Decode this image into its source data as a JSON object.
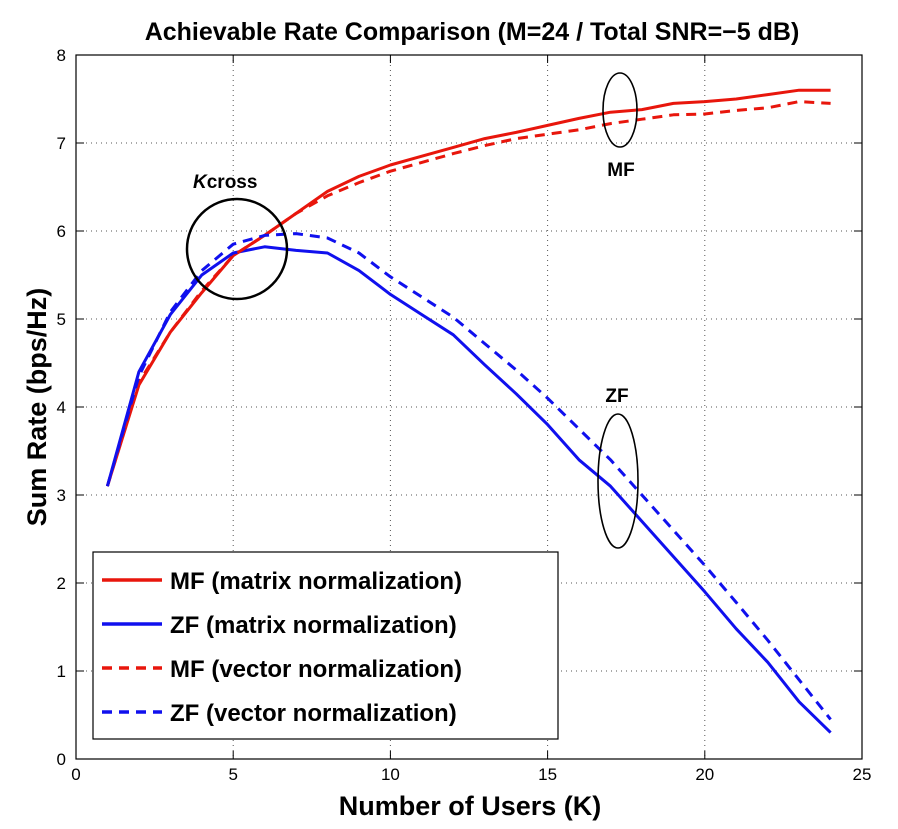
{
  "chart_data": {
    "type": "line",
    "title": "Achievable Rate Comparison (M=24 / Total SNR=−5 dB)",
    "xlabel": "Number of Users (K)",
    "ylabel": "Sum Rate (bps/Hz)",
    "xlim": [
      0,
      25
    ],
    "ylim": [
      0,
      8
    ],
    "xticks": [
      0,
      5,
      10,
      15,
      20,
      25
    ],
    "yticks": [
      0,
      1,
      2,
      3,
      4,
      5,
      6,
      7,
      8
    ],
    "grid": "dotted",
    "legend_position": "bottom-left",
    "series": [
      {
        "name": "MF (matrix normalization)",
        "color": "#e8160c",
        "dash": "solid",
        "x": [
          1,
          2,
          3,
          4,
          5,
          6,
          7,
          8,
          9,
          10,
          11,
          12,
          13,
          14,
          15,
          16,
          17,
          18,
          19,
          20,
          21,
          22,
          23,
          24
        ],
        "y": [
          3.1,
          4.25,
          4.85,
          5.3,
          5.72,
          5.95,
          6.2,
          6.45,
          6.62,
          6.75,
          6.85,
          6.95,
          7.05,
          7.12,
          7.2,
          7.28,
          7.35,
          7.38,
          7.45,
          7.47,
          7.5,
          7.55,
          7.6,
          7.6
        ]
      },
      {
        "name": "ZF (matrix normalization)",
        "color": "#1010ee",
        "dash": "solid",
        "x": [
          1,
          2,
          3,
          4,
          5,
          6,
          7,
          8,
          9,
          10,
          11,
          12,
          13,
          14,
          15,
          16,
          17,
          18,
          19,
          20,
          21,
          22,
          23,
          24
        ],
        "y": [
          3.1,
          4.4,
          5.05,
          5.5,
          5.75,
          5.82,
          5.78,
          5.75,
          5.55,
          5.28,
          5.05,
          4.82,
          4.48,
          4.15,
          3.8,
          3.4,
          3.1,
          2.7,
          2.3,
          1.9,
          1.48,
          1.1,
          0.65,
          0.3
        ]
      },
      {
        "name": "MF (vector normalization)",
        "color": "#e8160c",
        "dash": "dashed",
        "x": [
          1,
          2,
          3,
          4,
          5,
          6,
          7,
          8,
          9,
          10,
          11,
          12,
          13,
          14,
          15,
          16,
          17,
          18,
          19,
          20,
          21,
          22,
          23,
          24
        ],
        "y": [
          3.1,
          4.28,
          4.85,
          5.32,
          5.72,
          5.95,
          6.2,
          6.4,
          6.55,
          6.68,
          6.78,
          6.88,
          6.97,
          7.05,
          7.1,
          7.15,
          7.22,
          7.27,
          7.32,
          7.33,
          7.37,
          7.4,
          7.47,
          7.45
        ]
      },
      {
        "name": "ZF (vector normalization)",
        "color": "#1010ee",
        "dash": "dashed",
        "x": [
          1,
          2,
          3,
          4,
          5,
          6,
          7,
          8,
          9,
          10,
          11,
          12,
          13,
          14,
          15,
          16,
          17,
          18,
          19,
          20,
          21,
          22,
          23,
          24
        ],
        "y": [
          3.1,
          4.35,
          5.08,
          5.55,
          5.85,
          5.95,
          5.97,
          5.92,
          5.75,
          5.48,
          5.25,
          5.02,
          4.72,
          4.42,
          4.1,
          3.75,
          3.4,
          3.0,
          2.6,
          2.2,
          1.78,
          1.35,
          0.9,
          0.45
        ]
      }
    ],
    "annotations": [
      {
        "text": "K",
        "text2": "cross",
        "target": "crossover circle"
      },
      {
        "text": "MF",
        "target": "MF ellipse"
      },
      {
        "text": "ZF",
        "target": "ZF ellipse"
      }
    ]
  }
}
